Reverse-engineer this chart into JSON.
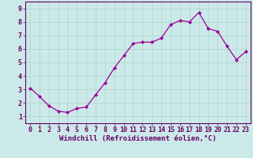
{
  "x": [
    0,
    1,
    2,
    3,
    4,
    5,
    6,
    7,
    8,
    9,
    10,
    11,
    12,
    13,
    14,
    15,
    16,
    17,
    18,
    19,
    20,
    21,
    22,
    23
  ],
  "y": [
    3.1,
    2.5,
    1.8,
    1.4,
    1.3,
    1.6,
    1.7,
    2.6,
    3.5,
    4.6,
    5.5,
    6.4,
    6.5,
    6.5,
    6.8,
    7.8,
    8.1,
    8.0,
    8.7,
    7.5,
    7.3,
    6.2,
    5.2,
    5.8
  ],
  "line_color": "#990099",
  "marker": "D",
  "marker_size": 2.0,
  "bg_color": "#cce9e9",
  "grid_color": "#aad4cc",
  "xlabel": "Windchill (Refroidissement éolien,°C)",
  "ylabel_ticks": [
    1,
    2,
    3,
    4,
    5,
    6,
    7,
    8,
    9
  ],
  "xtick_labels": [
    "0",
    "1",
    "2",
    "3",
    "4",
    "5",
    "6",
    "7",
    "8",
    "9",
    "10",
    "11",
    "12",
    "13",
    "14",
    "15",
    "16",
    "17",
    "18",
    "19",
    "20",
    "21",
    "22",
    "23"
  ],
  "ylim": [
    0.5,
    9.5
  ],
  "xlim": [
    -0.5,
    23.5
  ],
  "spine_color": "#660066",
  "tick_color": "#660066",
  "label_color": "#660066",
  "label_fontsize": 6.5,
  "tick_fontsize": 6.0,
  "linewidth": 0.9
}
